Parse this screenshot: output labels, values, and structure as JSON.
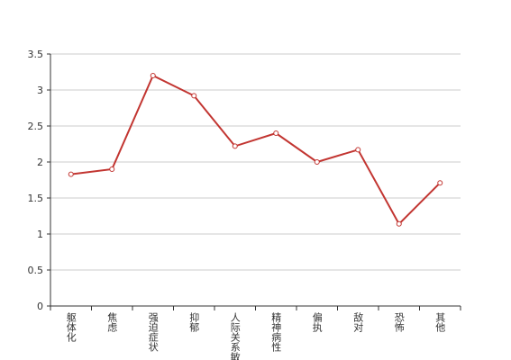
{
  "chart_data": {
    "type": "line",
    "categories": [
      "躯体化",
      "焦虑",
      "强迫症状",
      "抑郁",
      "人际关系敏感",
      "精神病性",
      "偏执",
      "敌对",
      "恐怖",
      "其他"
    ],
    "series": [
      {
        "color": "#c23531",
        "values": [
          1.83,
          1.9,
          3.2,
          2.92,
          2.22,
          2.4,
          2.0,
          2.17,
          1.14,
          1.71
        ]
      }
    ],
    "ylim": [
      0,
      3.5
    ],
    "yticks": [
      0,
      0.5,
      1,
      1.5,
      2,
      2.5,
      3,
      3.5
    ],
    "grid": true
  }
}
